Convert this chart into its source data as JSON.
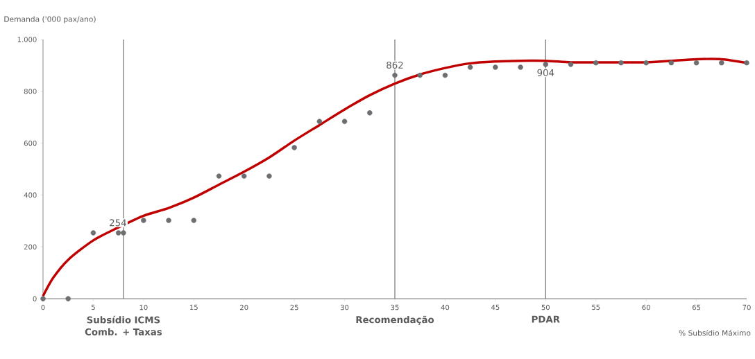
{
  "chart_data": {
    "type": "scatter",
    "xlabel": "% Subsídio Máximo",
    "ylabel": "Demanda ('000 pax/ano)",
    "xlim": [
      0,
      70
    ],
    "xticks": [
      0,
      5,
      10,
      15,
      20,
      25,
      30,
      35,
      40,
      45,
      50,
      55,
      60,
      65,
      70
    ],
    "ylim": [
      0,
      1000
    ],
    "yticks": [
      0,
      200,
      400,
      600,
      800,
      {
        "value": 1000,
        "label": "1.000"
      }
    ],
    "marker": "circle",
    "grid": false,
    "series": [
      {
        "color": "#6d6e71",
        "x": [
          0,
          2.5,
          5,
          7.5,
          8,
          10,
          12.5,
          15,
          17.5,
          20,
          22.5,
          25,
          27.5,
          30,
          32.5,
          35,
          37.5,
          40,
          42.5,
          45,
          47.5,
          50,
          52.5,
          55,
          57.5,
          60,
          62.5,
          65,
          67.5,
          70
        ],
        "values": [
          0,
          0,
          254,
          254,
          254,
          302,
          302,
          302,
          473,
          473,
          473,
          583,
          684,
          684,
          717,
          862,
          862,
          862,
          893,
          893,
          893,
          904,
          904,
          910,
          910,
          910,
          910,
          910,
          910,
          910
        ]
      },
      {
        "type": "line",
        "color": "#c00000",
        "marker": "none",
        "x": [
          0,
          1,
          2.5,
          5,
          7.5,
          10,
          12.5,
          15,
          17.5,
          20,
          22.5,
          25,
          27.5,
          30,
          32.5,
          35,
          37.5,
          40,
          42.5,
          45,
          47.5,
          50,
          52.5,
          55,
          57.5,
          60,
          62.5,
          65,
          67.5,
          70
        ],
        "values": [
          10,
          80,
          150,
          225,
          275,
          320,
          350,
          390,
          440,
          490,
          545,
          610,
          670,
          730,
          785,
          830,
          865,
          890,
          908,
          915,
          918,
          918,
          912,
          912,
          912,
          912,
          918,
          924,
          924,
          910
        ]
      }
    ],
    "ref_lines": [
      {
        "axis": "x",
        "value": 8,
        "label": "Subsídio ICMS Comb. + Taxas",
        "color": "#808080"
      },
      {
        "axis": "x",
        "value": 35,
        "label": "Recomendação",
        "color": "#808080"
      },
      {
        "axis": "x",
        "value": 50,
        "label": "PDAR",
        "color": "#808080"
      }
    ],
    "annotations": [
      {
        "text": "254",
        "x": 8,
        "y": 254
      },
      {
        "text": "862",
        "x": 35,
        "y": 862
      },
      {
        "text": "904",
        "x": 50,
        "y": 904
      }
    ]
  }
}
